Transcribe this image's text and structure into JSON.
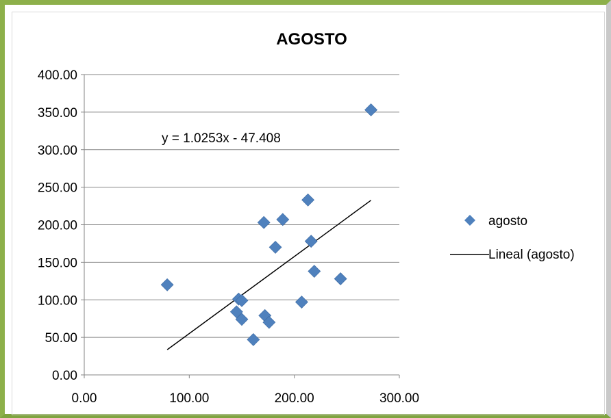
{
  "chart_data": {
    "type": "scatter",
    "title": "AGOSTO",
    "xlabel": "",
    "ylabel": "",
    "xlim": [
      0,
      300
    ],
    "ylim": [
      0,
      400
    ],
    "x_ticks": [
      "0.00",
      "100.00",
      "200.00",
      "300.00"
    ],
    "y_ticks": [
      "0.00",
      "50.00",
      "100.00",
      "150.00",
      "200.00",
      "250.00",
      "300.00",
      "350.00",
      "400.00"
    ],
    "grid": "horizontal",
    "legend_position": "right",
    "marker_color": "#4f81bd",
    "trendline_color": "#000000",
    "series": [
      {
        "name": "agosto",
        "points": [
          [
            79,
            120
          ],
          [
            145,
            84
          ],
          [
            147,
            101
          ],
          [
            150,
            99
          ],
          [
            150,
            74
          ],
          [
            161,
            47
          ],
          [
            171,
            203
          ],
          [
            172,
            79
          ],
          [
            176,
            70
          ],
          [
            182,
            170
          ],
          [
            189,
            207
          ],
          [
            207,
            97
          ],
          [
            213,
            233
          ],
          [
            216,
            178
          ],
          [
            219,
            138
          ],
          [
            244,
            128
          ],
          [
            273,
            353
          ]
        ]
      }
    ],
    "trendline": {
      "name": "Lineal (agosto)",
      "slope": 1.0253,
      "intercept": -47.408,
      "x_range": [
        79,
        273
      ],
      "equation": "y = 1.0253x - 47.408"
    }
  }
}
